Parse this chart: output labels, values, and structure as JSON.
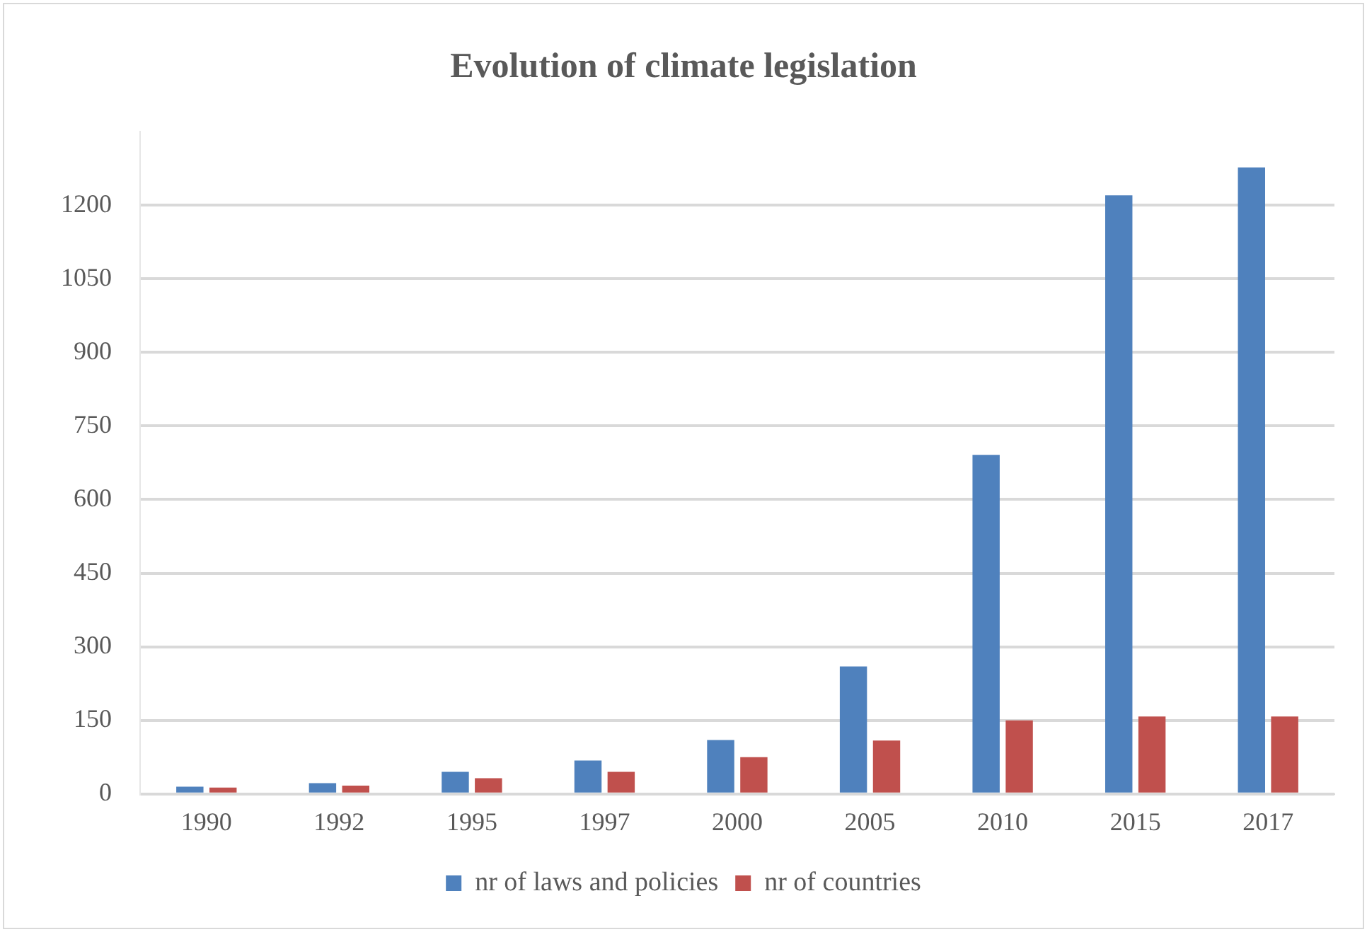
{
  "chart_data": {
    "type": "bar",
    "title": "Evolution of climate legislation",
    "categories": [
      "1990",
      "1992",
      "1995",
      "1997",
      "2000",
      "2005",
      "2010",
      "2015",
      "2017"
    ],
    "series": [
      {
        "name": "nr of laws and policies",
        "color": "#4f81bd",
        "values": [
          15,
          22,
          45,
          68,
          110,
          260,
          691,
          1220,
          1277
        ]
      },
      {
        "name": "nr of countries",
        "color": "#c0504d",
        "values": [
          13,
          17,
          32,
          45,
          75,
          109,
          150,
          158,
          158
        ]
      }
    ],
    "ylim": [
      0,
      1350
    ],
    "yticks": [
      0,
      150,
      300,
      450,
      600,
      750,
      900,
      1050,
      1200
    ],
    "grid": "y",
    "legend": "bottom"
  }
}
